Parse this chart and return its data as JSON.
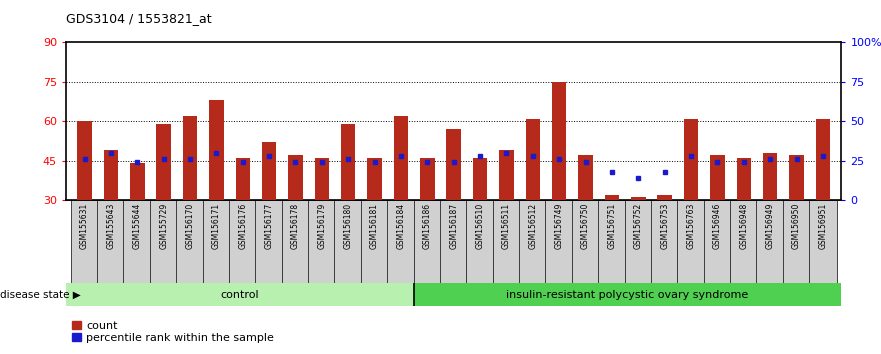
{
  "title": "GDS3104 / 1553821_at",
  "samples": [
    "GSM155631",
    "GSM155643",
    "GSM155644",
    "GSM155729",
    "GSM156170",
    "GSM156171",
    "GSM156176",
    "GSM156177",
    "GSM156178",
    "GSM156179",
    "GSM156180",
    "GSM156181",
    "GSM156184",
    "GSM156186",
    "GSM156187",
    "GSM156510",
    "GSM156511",
    "GSM156512",
    "GSM156749",
    "GSM156750",
    "GSM156751",
    "GSM156752",
    "GSM156753",
    "GSM156763",
    "GSM156946",
    "GSM156948",
    "GSM156949",
    "GSM156950",
    "GSM156951"
  ],
  "counts": [
    60,
    49,
    44,
    59,
    62,
    68,
    46,
    52,
    47,
    46,
    59,
    46,
    62,
    46,
    57,
    46,
    49,
    61,
    75,
    47,
    32,
    31,
    32,
    61,
    47,
    46,
    48,
    47,
    61
  ],
  "percentile_ranks_pct": [
    26,
    30,
    24,
    26,
    26,
    30,
    24,
    28,
    24,
    24,
    26,
    24,
    28,
    24,
    24,
    28,
    30,
    28,
    26,
    24,
    18,
    14,
    18,
    28,
    24,
    24,
    26,
    26,
    28
  ],
  "control_count": 13,
  "disease_label": "insulin-resistant polycystic ovary syndrome",
  "control_label": "control",
  "bar_color": "#b52a1a",
  "marker_color": "#1a1acc",
  "ylim_left": [
    30,
    90
  ],
  "yticks_left": [
    30,
    45,
    60,
    75,
    90
  ],
  "ylim_right": [
    0,
    100
  ],
  "yticks_right": [
    0,
    25,
    50,
    75,
    100
  ],
  "ytick_labels_right": [
    "0",
    "25",
    "50",
    "75",
    "100%"
  ],
  "hlines": [
    45,
    60,
    75
  ],
  "control_bg": "#b8f0b0",
  "disease_bg": "#50d050",
  "xticklabel_bg": "#d8d8d8",
  "bar_width": 0.55
}
